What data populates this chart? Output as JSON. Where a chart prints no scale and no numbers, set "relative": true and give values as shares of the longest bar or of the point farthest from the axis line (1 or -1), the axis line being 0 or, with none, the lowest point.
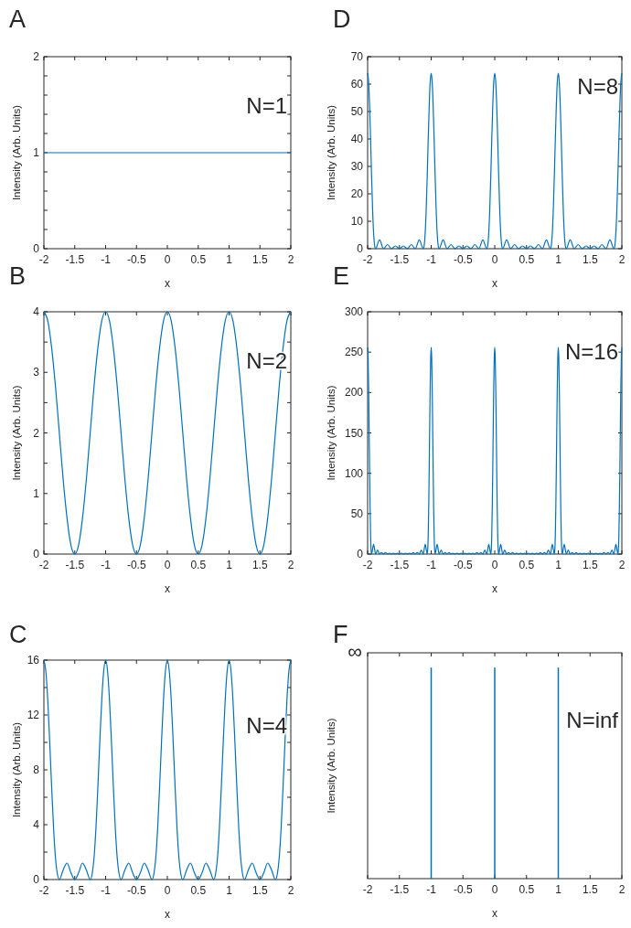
{
  "chart_data": [
    {
      "type": "line",
      "title": "A",
      "xlabel": "x",
      "ylabel": "Intensity (Arb. Units)",
      "annotations": [
        "N=1"
      ],
      "x": [
        -2,
        2
      ],
      "series": [
        {
          "color": "#0072bd",
          "values": [
            1,
            1
          ]
        }
      ],
      "xlim": [
        -2,
        2
      ],
      "ylim": [
        0,
        2
      ],
      "xticks": [
        -2,
        -1.5,
        -1,
        -0.5,
        0,
        0.5,
        1,
        1.5,
        2
      ],
      "yticks": [
        0,
        {
          "value": 0.2,
          "label": null
        },
        {
          "value": 0.4,
          "label": null
        },
        {
          "value": 0.6,
          "label": null
        },
        {
          "value": 0.8,
          "label": null
        },
        1,
        {
          "value": 1.2,
          "label": null
        },
        {
          "value": 1.4,
          "label": null
        },
        {
          "value": 1.6,
          "label": null
        },
        {
          "value": 1.8,
          "label": null
        },
        2
      ]
    },
    {
      "type": "line",
      "title": "D",
      "xlabel": "x",
      "ylabel": "Intensity (Arb. Units)",
      "annotations": [
        "N=8"
      ],
      "x": [
        -2,
        -1.984375,
        -1.96875,
        -1.953125,
        -1.9375,
        -1.921875,
        -1.90625,
        -1.890625,
        -1.875,
        -1.8125,
        -1.75,
        -1.6875,
        -1.625,
        -1.5625,
        -1.5,
        -1.4375,
        -1.375,
        -1.3125,
        -1.25,
        -1.1875,
        -1.125,
        -1.109375,
        -1.09375,
        -1.078125,
        -1.0625,
        -1.046875,
        -1.03125,
        -1.015625,
        -1,
        -0.984375,
        -0.96875,
        -0.953125,
        -0.9375,
        -0.921875,
        -0.90625,
        -0.890625,
        -0.875,
        -0.8125,
        -0.75,
        -0.6875,
        -0.625,
        -0.5625,
        -0.5,
        -0.4375,
        -0.375,
        -0.3125,
        -0.25,
        -0.1875,
        -0.125,
        -0.109375,
        -0.09375,
        -0.078125,
        -0.0625,
        -0.046875,
        -0.03125,
        -0.015625,
        0,
        0.015625,
        0.03125,
        0.046875,
        0.0625,
        0.078125,
        0.09375,
        0.109375,
        0.125,
        0.1875,
        0.25,
        0.3125,
        0.375,
        0.4375,
        0.5,
        0.5625,
        0.625,
        0.6875,
        0.75,
        0.8125,
        0.875,
        0.890625,
        0.90625,
        0.921875,
        0.9375,
        0.953125,
        0.96875,
        0.984375,
        1,
        1.015625,
        1.03125,
        1.046875,
        1.0625,
        1.078125,
        1.09375,
        1.109375,
        1.125,
        1.1875,
        1.25,
        1.3125,
        1.375,
        1.4375,
        1.5,
        1.5625,
        1.625,
        1.6875,
        1.75,
        1.8125,
        1.875,
        1.890625,
        1.90625,
        1.921875,
        1.9375,
        1.953125,
        1.96875,
        1.984375,
        2
      ],
      "series": [
        {
          "color": "#0072bd",
          "values": [
            64,
            60.8,
            52,
            39.7,
            26.3,
            14.5,
            5.9,
            1.3,
            0,
            3.2,
            0,
            1.5,
            0,
            1,
            0,
            1,
            0,
            1.5,
            0,
            3.2,
            0,
            1.3,
            5.9,
            14.5,
            26.3,
            39.7,
            52,
            60.8,
            64,
            60.8,
            52,
            39.7,
            26.3,
            14.5,
            5.9,
            1.3,
            0,
            3.2,
            0,
            1.5,
            0,
            1,
            0,
            1,
            0,
            1.5,
            0,
            3.2,
            0,
            1.3,
            5.9,
            14.5,
            26.3,
            39.7,
            52,
            60.8,
            64,
            60.8,
            52,
            39.7,
            26.3,
            14.5,
            5.9,
            1.3,
            0,
            3.2,
            0,
            1.5,
            0,
            1,
            0,
            1,
            0,
            1.5,
            0,
            3.2,
            0,
            1.3,
            5.9,
            14.5,
            26.3,
            39.7,
            52,
            60.8,
            64,
            60.8,
            52,
            39.7,
            26.3,
            14.5,
            5.9,
            1.3,
            0,
            3.2,
            0,
            1.5,
            0,
            1,
            0,
            1,
            0,
            1.5,
            0,
            3.2,
            0,
            1.3,
            5.9,
            14.5,
            26.3,
            39.7,
            52,
            60.8,
            64
          ]
        }
      ],
      "xlim": [
        -2,
        2
      ],
      "ylim": [
        0,
        70
      ],
      "xticks": [
        -2,
        -1.5,
        -1,
        -0.5,
        0,
        0.5,
        1,
        1.5,
        2
      ],
      "yticks": [
        0,
        10,
        20,
        30,
        40,
        50,
        60,
        70
      ]
    },
    {
      "type": "line",
      "title": "B",
      "xlabel": "x",
      "ylabel": "Intensity (Arb. Units)",
      "annotations": [
        "N=2"
      ],
      "x": [
        -2,
        -1.9375,
        -1.875,
        -1.8125,
        -1.75,
        -1.6875,
        -1.625,
        -1.5625,
        -1.5,
        -1.4375,
        -1.375,
        -1.3125,
        -1.25,
        -1.1875,
        -1.125,
        -1.0625,
        -1,
        -0.9375,
        -0.875,
        -0.8125,
        -0.75,
        -0.6875,
        -0.625,
        -0.5625,
        -0.5,
        -0.4375,
        -0.375,
        -0.3125,
        -0.25,
        -0.1875,
        -0.125,
        -0.0625,
        0,
        0.0625,
        0.125,
        0.1875,
        0.25,
        0.3125,
        0.375,
        0.4375,
        0.5,
        0.5625,
        0.625,
        0.6875,
        0.75,
        0.8125,
        0.875,
        0.9375,
        1,
        1.0625,
        1.125,
        1.1875,
        1.25,
        1.3125,
        1.375,
        1.4375,
        1.5,
        1.5625,
        1.625,
        1.6875,
        1.75,
        1.8125,
        1.875,
        1.9375,
        2
      ],
      "series": [
        {
          "color": "#0072bd",
          "values": [
            4,
            3.85,
            3.41,
            2.77,
            2,
            1.23,
            0.59,
            0.15,
            0,
            0.15,
            0.59,
            1.23,
            2,
            2.77,
            3.41,
            3.85,
            4,
            3.85,
            3.41,
            2.77,
            2,
            1.23,
            0.59,
            0.15,
            0,
            0.15,
            0.59,
            1.23,
            2,
            2.77,
            3.41,
            3.85,
            4,
            3.85,
            3.41,
            2.77,
            2,
            1.23,
            0.59,
            0.15,
            0,
            0.15,
            0.59,
            1.23,
            2,
            2.77,
            3.41,
            3.85,
            4,
            3.85,
            3.41,
            2.77,
            2,
            1.23,
            0.59,
            0.15,
            0,
            0.15,
            0.59,
            1.23,
            2,
            2.77,
            3.41,
            3.85,
            4
          ]
        }
      ],
      "xlim": [
        -2,
        2
      ],
      "ylim": [
        0,
        4
      ],
      "xticks": [
        -2,
        -1.5,
        -1,
        -0.5,
        0,
        0.5,
        1,
        1.5,
        2
      ],
      "yticks": [
        0,
        {
          "value": 0.5,
          "label": null
        },
        1,
        {
          "value": 1.5,
          "label": null
        },
        2,
        {
          "value": 2.5,
          "label": null
        },
        3,
        {
          "value": 3.5,
          "label": null
        },
        4
      ]
    },
    {
      "type": "line",
      "title": "E",
      "xlabel": "x",
      "ylabel": "Intensity (Arb. Units)",
      "annotations": [
        "N=16"
      ],
      "x": [
        -2,
        -1.9921875,
        -1.984375,
        -1.9765625,
        -1.96875,
        -1.9609375,
        -1.953125,
        -1.9453125,
        -1.9375,
        -1.90625,
        -1.875,
        -1.84375,
        -1.8125,
        -1.78125,
        -1.75,
        -1.71875,
        -1.6875,
        -1.65625,
        -1.625,
        -1.59375,
        -1.5625,
        -1.53125,
        -1.5,
        -1.46875,
        -1.4375,
        -1.40625,
        -1.375,
        -1.34375,
        -1.3125,
        -1.28125,
        -1.25,
        -1.21875,
        -1.1875,
        -1.15625,
        -1.125,
        -1.09375,
        -1.0625,
        -1.0546875,
        -1.046875,
        -1.0390625,
        -1.03125,
        -1.0234375,
        -1.015625,
        -1.0078125,
        -1,
        -0.9921875,
        -0.984375,
        -0.9765625,
        -0.96875,
        -0.9609375,
        -0.953125,
        -0.9453125,
        -0.9375,
        -0.90625,
        -0.875,
        -0.84375,
        -0.8125,
        -0.78125,
        -0.75,
        -0.71875,
        -0.6875,
        -0.65625,
        -0.625,
        -0.59375,
        -0.5625,
        -0.53125,
        -0.5,
        -0.46875,
        -0.4375,
        -0.40625,
        -0.375,
        -0.34375,
        -0.3125,
        -0.28125,
        -0.25,
        -0.21875,
        -0.1875,
        -0.15625,
        -0.125,
        -0.09375,
        -0.0625,
        -0.0546875,
        -0.046875,
        -0.0390625,
        -0.03125,
        -0.0234375,
        -0.015625,
        -0.0078125,
        0,
        0.0078125,
        0.015625,
        0.0234375,
        0.03125,
        0.0390625,
        0.046875,
        0.0546875,
        0.0625,
        0.09375,
        0.125,
        0.15625,
        0.1875,
        0.21875,
        0.25,
        0.28125,
        0.3125,
        0.34375,
        0.375,
        0.40625,
        0.4375,
        0.46875,
        0.5,
        0.53125,
        0.5625,
        0.59375,
        0.625,
        0.65625,
        0.6875,
        0.71875,
        0.75,
        0.78125,
        0.8125,
        0.84375,
        0.875,
        0.90625,
        0.9375,
        0.9453125,
        0.953125,
        0.9609375,
        0.96875,
        0.9765625,
        0.984375,
        0.9921875,
        1,
        1.0078125,
        1.015625,
        1.0234375,
        1.03125,
        1.0390625,
        1.046875,
        1.0546875,
        1.0625,
        1.09375,
        1.125,
        1.15625,
        1.1875,
        1.21875,
        1.25,
        1.28125,
        1.3125,
        1.34375,
        1.375,
        1.40625,
        1.4375,
        1.46875,
        1.5,
        1.53125,
        1.5625,
        1.59375,
        1.625,
        1.65625,
        1.6875,
        1.71875,
        1.75,
        1.78125,
        1.8125,
        1.84375,
        1.875,
        1.90625,
        1.9375,
        1.9453125,
        1.953125,
        1.9609375,
        1.96875,
        1.9765625,
        1.984375,
        1.9921875,
        2
      ],
      "series": [
        {
          "color": "#0072bd",
          "values": [
            256,
            243,
            208,
            158,
            104,
            57,
            23,
            5,
            0,
            12,
            0,
            5,
            0,
            2,
            0,
            2,
            0,
            1,
            0,
            1,
            0,
            1,
            0,
            1,
            0,
            1,
            0,
            1,
            0,
            2,
            0,
            2,
            0,
            5,
            0,
            12,
            0,
            5,
            23,
            57,
            104,
            158,
            208,
            243,
            256,
            243,
            208,
            158,
            104,
            57,
            23,
            5,
            0,
            12,
            0,
            5,
            0,
            2,
            0,
            2,
            0,
            1,
            0,
            1,
            0,
            1,
            0,
            1,
            0,
            1,
            0,
            1,
            0,
            2,
            0,
            2,
            0,
            5,
            0,
            12,
            0,
            5,
            23,
            57,
            104,
            158,
            208,
            243,
            256,
            243,
            208,
            158,
            104,
            57,
            23,
            5,
            0,
            12,
            0,
            5,
            0,
            2,
            0,
            2,
            0,
            1,
            0,
            1,
            0,
            1,
            0,
            1,
            0,
            1,
            0,
            1,
            0,
            2,
            0,
            2,
            0,
            5,
            0,
            12,
            0,
            5,
            23,
            57,
            104,
            158,
            208,
            243,
            256,
            243,
            208,
            158,
            104,
            57,
            23,
            5,
            0,
            12,
            0,
            5,
            0,
            2,
            0,
            2,
            0,
            1,
            0,
            1,
            0,
            1,
            0,
            1,
            0,
            1,
            0,
            1,
            0,
            2,
            0,
            2,
            0,
            5,
            0,
            12,
            0,
            5,
            23,
            57,
            104,
            158,
            208,
            243,
            256
          ]
        }
      ],
      "xlim": [
        -2,
        2
      ],
      "ylim": [
        0,
        300
      ],
      "xticks": [
        -2,
        -1.5,
        -1,
        -0.5,
        0,
        0.5,
        1,
        1.5,
        2
      ],
      "yticks": [
        0,
        50,
        100,
        150,
        200,
        250,
        300
      ]
    },
    {
      "type": "line",
      "title": "C",
      "xlabel": "x",
      "ylabel": "Intensity (Arb. Units)",
      "annotations": [
        "N=4"
      ],
      "x": [
        -2,
        -1.96875,
        -1.9375,
        -1.90625,
        -1.875,
        -1.84375,
        -1.8125,
        -1.78125,
        -1.75,
        -1.6875,
        -1.625,
        -1.5625,
        -1.5,
        -1.4375,
        -1.375,
        -1.3125,
        -1.25,
        -1.21875,
        -1.1875,
        -1.15625,
        -1.125,
        -1.09375,
        -1.0625,
        -1.03125,
        -1,
        -0.96875,
        -0.9375,
        -0.90625,
        -0.875,
        -0.84375,
        -0.8125,
        -0.78125,
        -0.75,
        -0.6875,
        -0.625,
        -0.5625,
        -0.5,
        -0.4375,
        -0.375,
        -0.3125,
        -0.25,
        -0.21875,
        -0.1875,
        -0.15625,
        -0.125,
        -0.09375,
        -0.0625,
        -0.03125,
        0,
        0.03125,
        0.0625,
        0.09375,
        0.125,
        0.15625,
        0.1875,
        0.21875,
        0.25,
        0.3125,
        0.375,
        0.4375,
        0.5,
        0.5625,
        0.625,
        0.6875,
        0.75,
        0.78125,
        0.8125,
        0.84375,
        0.875,
        0.90625,
        0.9375,
        0.96875,
        1,
        1.03125,
        1.0625,
        1.09375,
        1.125,
        1.15625,
        1.1875,
        1.21875,
        1.25,
        1.3125,
        1.375,
        1.4375,
        1.5,
        1.5625,
        1.625,
        1.6875,
        1.75,
        1.78125,
        1.8125,
        1.84375,
        1.875,
        1.90625,
        1.9375,
        1.96875,
        2
      ],
      "series": [
        {
          "color": "#0072bd",
          "values": [
            16,
            15.2,
            13.1,
            10.1,
            6.8,
            3.8,
            1.6,
            0.4,
            0,
            0.7,
            1.2,
            0.5,
            0,
            0.5,
            1.2,
            0.7,
            0,
            0.4,
            1.6,
            3.8,
            6.8,
            10.1,
            13.1,
            15.2,
            16,
            15.2,
            13.1,
            10.1,
            6.8,
            3.8,
            1.6,
            0.4,
            0,
            0.7,
            1.2,
            0.5,
            0,
            0.5,
            1.2,
            0.7,
            0,
            0.4,
            1.6,
            3.8,
            6.8,
            10.1,
            13.1,
            15.2,
            16,
            15.2,
            13.1,
            10.1,
            6.8,
            3.8,
            1.6,
            0.4,
            0,
            0.7,
            1.2,
            0.5,
            0,
            0.5,
            1.2,
            0.7,
            0,
            0.4,
            1.6,
            3.8,
            6.8,
            10.1,
            13.1,
            15.2,
            16,
            15.2,
            13.1,
            10.1,
            6.8,
            3.8,
            1.6,
            0.4,
            0,
            0.7,
            1.2,
            0.5,
            0,
            0.5,
            1.2,
            0.7,
            0,
            0.4,
            1.6,
            3.8,
            6.8,
            10.1,
            13.1,
            15.2,
            16
          ]
        }
      ],
      "xlim": [
        -2,
        2
      ],
      "ylim": [
        0,
        16
      ],
      "xticks": [
        -2,
        -1.5,
        -1,
        -0.5,
        0,
        0.5,
        1,
        1.5,
        2
      ],
      "yticks": [
        0,
        {
          "value": 2,
          "label": null
        },
        4,
        {
          "value": 6,
          "label": null
        },
        8,
        {
          "value": 10,
          "label": null
        },
        12,
        {
          "value": 14,
          "label": null
        },
        16
      ]
    },
    {
      "type": "bar",
      "title": "F",
      "xlabel": "x",
      "ylabel": "Intensity (Arb. Units)",
      "annotations": [
        "N=inf",
        "∞"
      ],
      "relative": true,
      "x": [
        -1,
        0,
        1
      ],
      "series": [
        {
          "color": "#0072bd",
          "values": [
            1,
            1,
            1
          ]
        }
      ],
      "xlim": [
        -2,
        2
      ],
      "xticks": [
        -2,
        -1.5,
        -1,
        -0.5,
        0,
        0.5,
        1,
        1.5,
        2
      ]
    }
  ]
}
